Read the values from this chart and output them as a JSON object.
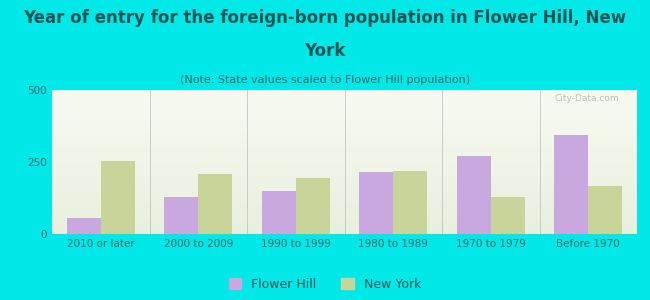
{
  "title_line1": "Year of entry for the foreign-born population in Flower Hill, New",
  "title_line2": "York",
  "subtitle": "(Note: State values scaled to Flower Hill population)",
  "categories": [
    "2010 or later",
    "2000 to 2009",
    "1990 to 1999",
    "1980 to 1989",
    "1970 to 1979",
    "Before 1970"
  ],
  "flower_hill": [
    55,
    130,
    150,
    215,
    270,
    345
  ],
  "new_york": [
    255,
    210,
    195,
    220,
    130,
    165
  ],
  "flower_hill_color": "#c9a8e0",
  "new_york_color": "#c8d49a",
  "background_color": "#00e8e8",
  "plot_bg_top": "#e8f0de",
  "plot_bg_bottom": "#f8faf2",
  "ylim": [
    0,
    500
  ],
  "yticks": [
    0,
    250,
    500
  ],
  "bar_width": 0.35,
  "title_fontsize": 12,
  "subtitle_fontsize": 8,
  "legend_fontsize": 9,
  "tick_fontsize": 7.5,
  "title_color": "#1a5555",
  "subtitle_color": "#336666",
  "tick_color": "#336666",
  "watermark": "City-Data.com"
}
